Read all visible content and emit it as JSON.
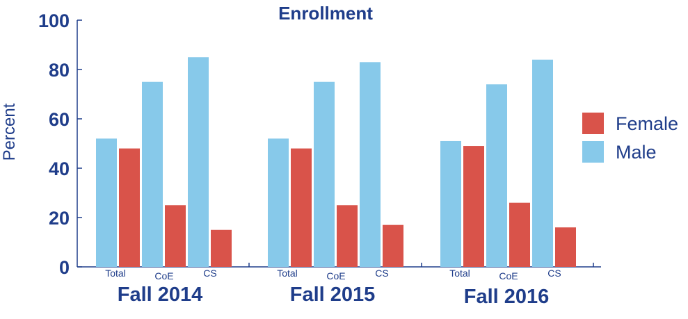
{
  "chart_data": {
    "type": "bar",
    "title": "Enrollment",
    "ylabel": "Percent",
    "xlabel": "",
    "ylim": [
      0,
      100
    ],
    "yticks": [
      0,
      20,
      40,
      60,
      80,
      100
    ],
    "groups": [
      {
        "label": "Fall 2014",
        "categories": [
          "Total",
          "CoE",
          "CS"
        ],
        "male": [
          52,
          75,
          85
        ],
        "female": [
          48,
          25,
          15
        ]
      },
      {
        "label": "Fall 2015",
        "categories": [
          "Total",
          "CoE",
          "CS"
        ],
        "male": [
          52,
          75,
          83
        ],
        "female": [
          48,
          25,
          17
        ]
      },
      {
        "label": "Fall 2016",
        "categories": [
          "Total",
          "CoE",
          "CS"
        ],
        "male": [
          51,
          74,
          84
        ],
        "female": [
          49,
          26,
          16
        ]
      }
    ],
    "series": [
      {
        "name": "Female",
        "color": "#d9534a"
      },
      {
        "name": "Male",
        "color": "#87c9ea"
      }
    ],
    "legend_position": "right",
    "grid": false
  },
  "colors": {
    "text": "#1f3d8a",
    "axis": "#1f3d8a"
  }
}
